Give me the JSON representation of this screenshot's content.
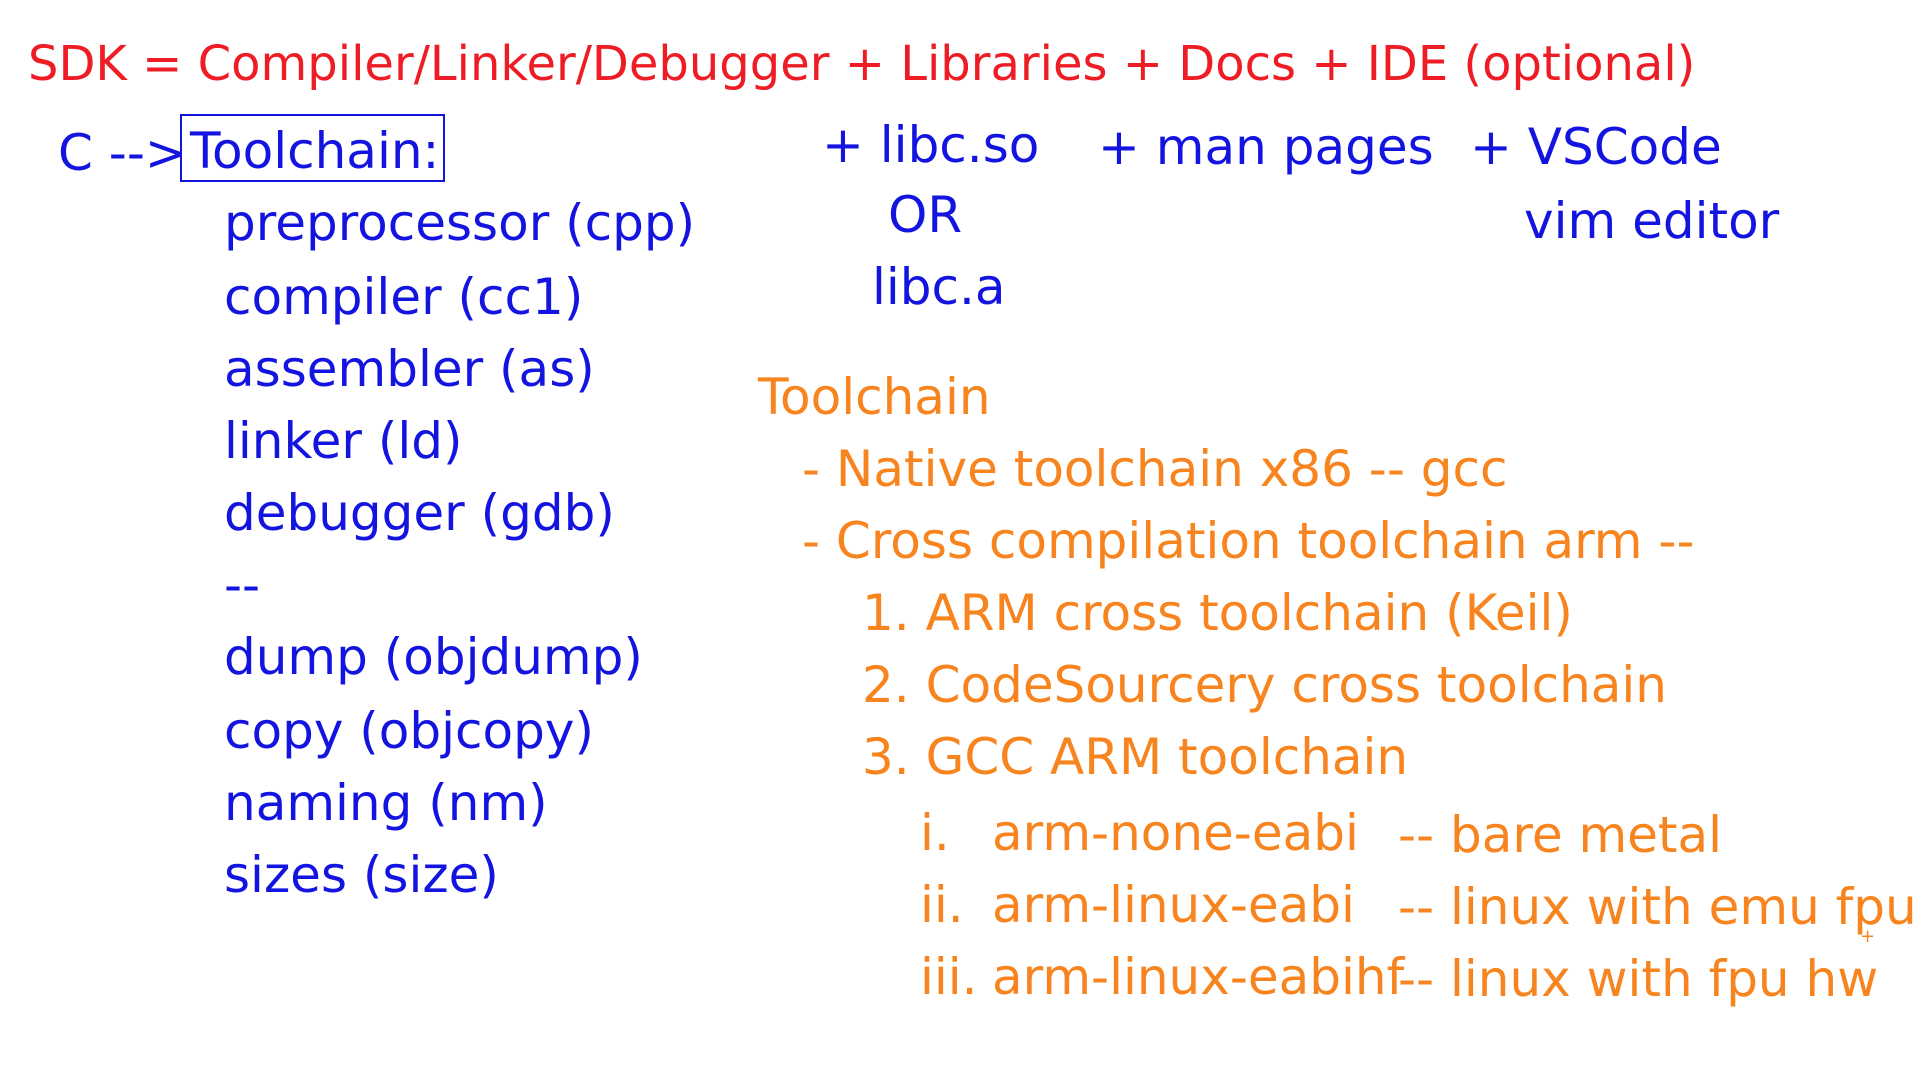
{
  "sdk_line": "SDK = Compiler/Linker/Debugger + Libraries + Docs + IDE (optional)",
  "left": {
    "prefix": "C -->",
    "toolchain_label": "Toolchain:",
    "tools": [
      "preprocessor (cpp)",
      "compiler (cc1)",
      "assembler (as)",
      "linker (ld)",
      "debugger (gdb)",
      "--",
      "dump (objdump)",
      "copy (objcopy)",
      "naming (nm)",
      "sizes (size)"
    ]
  },
  "libraries": [
    "+ libc.so",
    "OR",
    "libc.a"
  ],
  "docs": [
    "+ man pages"
  ],
  "ide": [
    "+ VSCode",
    "vim editor"
  ],
  "toolchain_notes": {
    "heading": "Toolchain",
    "native": "- Native toolchain x86 -- gcc",
    "cross": "- Cross compilation toolchain arm --",
    "options": [
      "1. ARM cross toolchain (Keil)",
      "2. CodeSourcery cross toolchain",
      "3. GCC ARM toolchain"
    ],
    "variants": [
      {
        "num": "i.",
        "name": "arm-none-eabi",
        "desc": "-- bare metal"
      },
      {
        "num": "ii.",
        "name": "arm-linux-eabi",
        "desc": "-- linux with emu fpu"
      },
      {
        "num": "iii.",
        "name": "arm-linux-eabihf",
        "desc": "-- linux with fpu hw"
      }
    ]
  },
  "colors": {
    "red": "#ee1c24",
    "blue": "#1414e0",
    "orange": "#f7841e"
  }
}
